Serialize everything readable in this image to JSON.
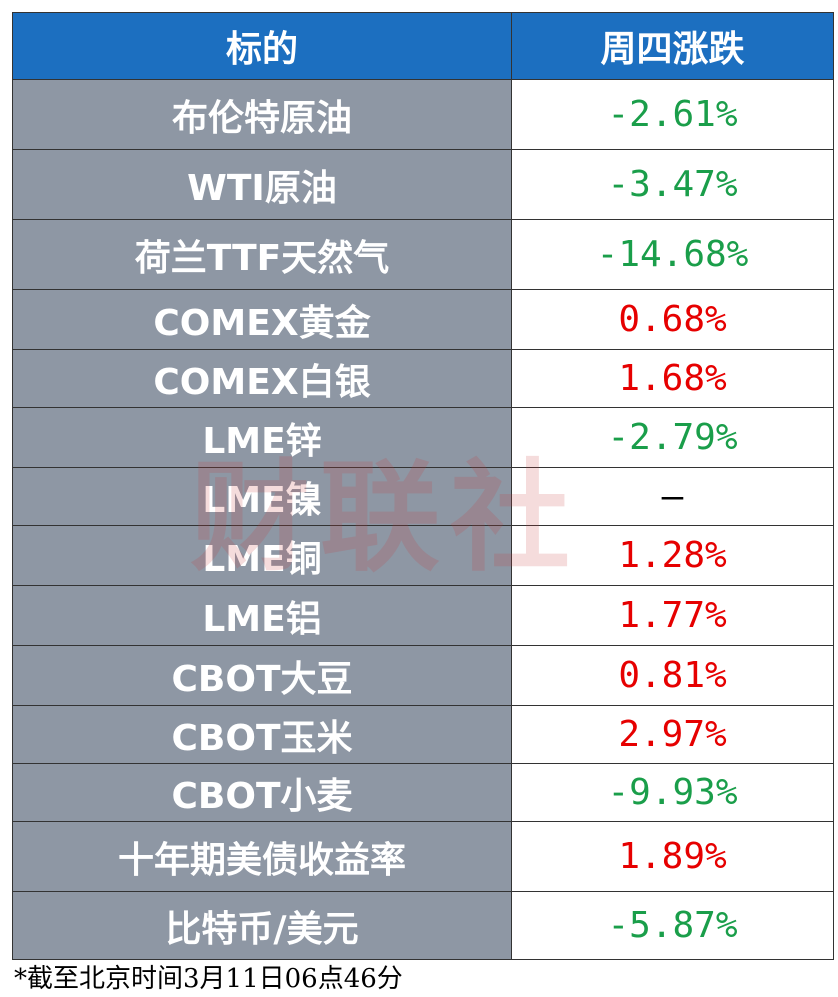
{
  "table": {
    "header": [
      "标的",
      "周四涨跌"
    ],
    "rows": [
      {
        "name": "布伦特原油",
        "change": "-2.61%",
        "color": "#1a9e4a"
      },
      {
        "name": "WTI原油",
        "change": "-3.47%",
        "color": "#1a9e4a"
      },
      {
        "name": "荷兰TTF天然气",
        "change": "-14.68%",
        "color": "#1a9e4a"
      },
      {
        "name": "COMEX黄金",
        "change": "0.68%",
        "color": "#e60000"
      },
      {
        "name": "COMEX白银",
        "change": "1.68%",
        "color": "#e60000"
      },
      {
        "name": "LME锌",
        "change": "-2.79%",
        "color": "#1a9e4a"
      },
      {
        "name": "LME镍",
        "change": "—",
        "color": "#000000"
      },
      {
        "name": "LME铜",
        "change": "1.28%",
        "color": "#e60000"
      },
      {
        "name": "LME铝",
        "change": "1.77%",
        "color": "#e60000"
      },
      {
        "name": "CBOT大豆",
        "change": "0.81%",
        "color": "#e60000"
      },
      {
        "name": "CBOT玉米",
        "change": "2.97%",
        "color": "#e60000"
      },
      {
        "name": "CBOT小麦",
        "change": "-9.93%",
        "color": "#1a9e4a"
      },
      {
        "name": "十年期美债收益率",
        "change": "1.89%",
        "color": "#e60000"
      },
      {
        "name": "比特币/美元",
        "change": "-5.87%",
        "color": "#1a9e4a"
      }
    ]
  },
  "watermark": "财联社",
  "footnote": "*截至北京时间3月11日06点46分"
}
